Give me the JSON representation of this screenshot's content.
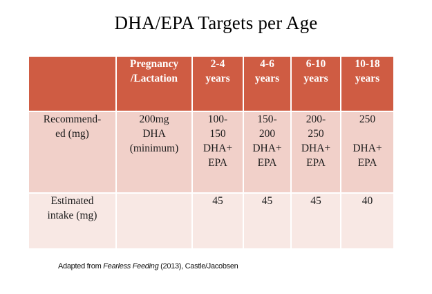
{
  "title": "DHA/EPA Targets per Age",
  "table": {
    "headers": [
      "",
      "Pregnancy\n/Lactation",
      "2-4\nyears",
      "4-6\nyears",
      "6-10\nyears",
      "10-18\nyears"
    ],
    "rows": [
      {
        "label": "Recommend-\ned (mg)",
        "cells": [
          "200mg\nDHA\n(minimum)",
          "100-\n150\nDHA+\nEPA",
          "150-\n200\nDHA+\nEPA",
          "200-\n250\nDHA+\nEPA",
          "250\n\nDHA+\nEPA"
        ]
      },
      {
        "label": "Estimated\nintake (mg)",
        "cells": [
          "",
          "45",
          "45",
          "45",
          "40"
        ]
      }
    ]
  },
  "footnote": {
    "prefix": "Adapted from ",
    "book": "Fearless Feeding",
    "suffix": " (2013), Castle/Jacobsen"
  },
  "colors": {
    "header_bg": "#cf5c43",
    "row1_bg": "#f1d0c9",
    "row2_bg": "#f8e8e4"
  }
}
